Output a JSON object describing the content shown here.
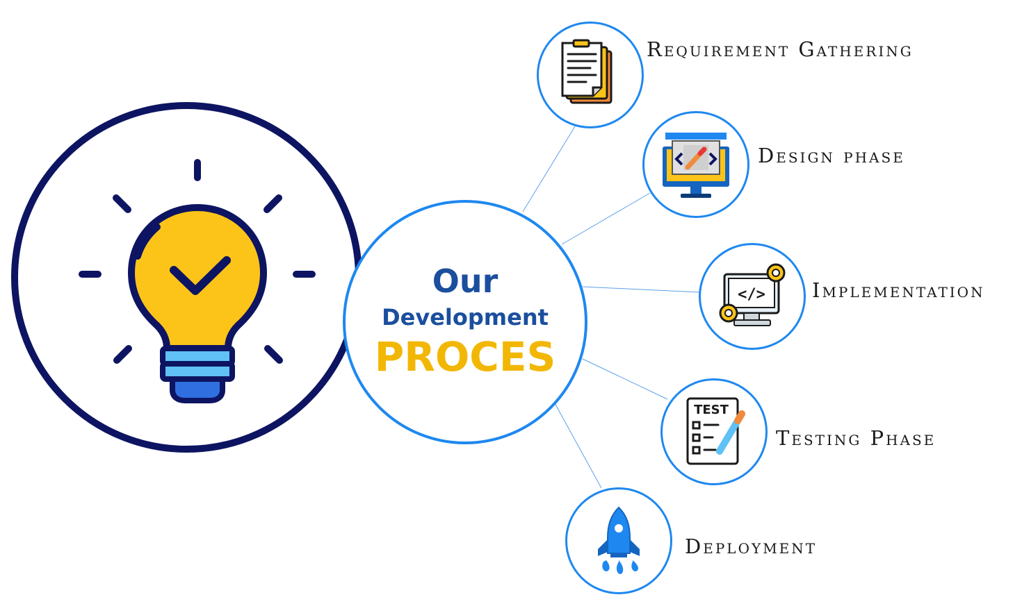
{
  "center": {
    "line1": "Our",
    "line2": "Development",
    "line3": "PROCES"
  },
  "colors": {
    "navy": "#0d1461",
    "blue": "#1e88f0",
    "title_blue": "#1b4f9e",
    "gold": "#f2b705"
  },
  "steps": [
    {
      "label": "Requirement Gathering",
      "icon": "document-icon"
    },
    {
      "label": "Design phase",
      "icon": "design-monitor-icon"
    },
    {
      "label": "Implementation",
      "icon": "code-gears-icon"
    },
    {
      "label": "Testing Phase",
      "icon": "test-checklist-icon"
    },
    {
      "label": "Deployment",
      "icon": "rocket-icon"
    }
  ]
}
